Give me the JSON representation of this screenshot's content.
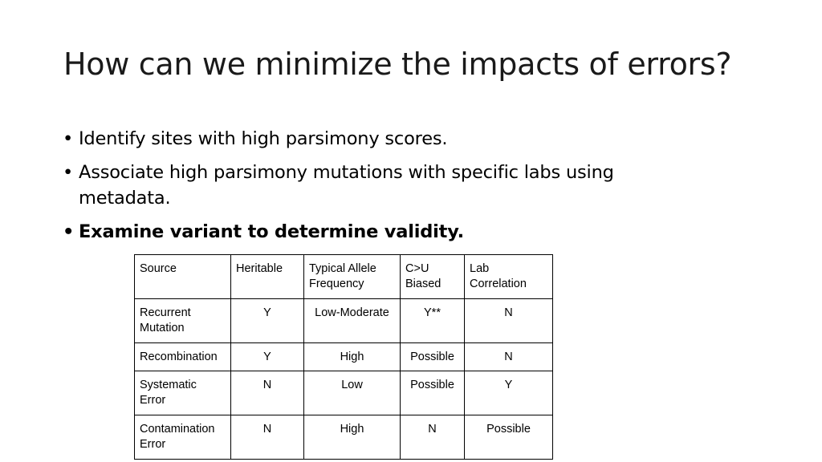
{
  "slide": {
    "title": "How can we minimize the impacts of errors?",
    "bullets": [
      {
        "text": "Identify sites with high parsimony scores.",
        "bold": false
      },
      {
        "text": "Associate high parsimony mutations with specific labs using metadata.",
        "bold": false
      },
      {
        "text": "Examine variant to determine validity.",
        "bold": true
      }
    ],
    "bullet_marker": "•"
  },
  "table": {
    "headers": [
      "Source",
      "Heritable",
      "Typical Allele Frequency",
      "C>U Biased",
      "Lab Correlation"
    ],
    "rows": [
      [
        "Recurrent Mutation",
        "Y",
        "Low-Moderate",
        "Y**",
        "N"
      ],
      [
        "Recombination",
        "Y",
        "High",
        "Possible",
        "N"
      ],
      [
        "Systematic Error",
        "N",
        "Low",
        "Possible",
        "Y"
      ],
      [
        "Contamination Error",
        "N",
        "High",
        "N",
        "Possible"
      ]
    ]
  }
}
